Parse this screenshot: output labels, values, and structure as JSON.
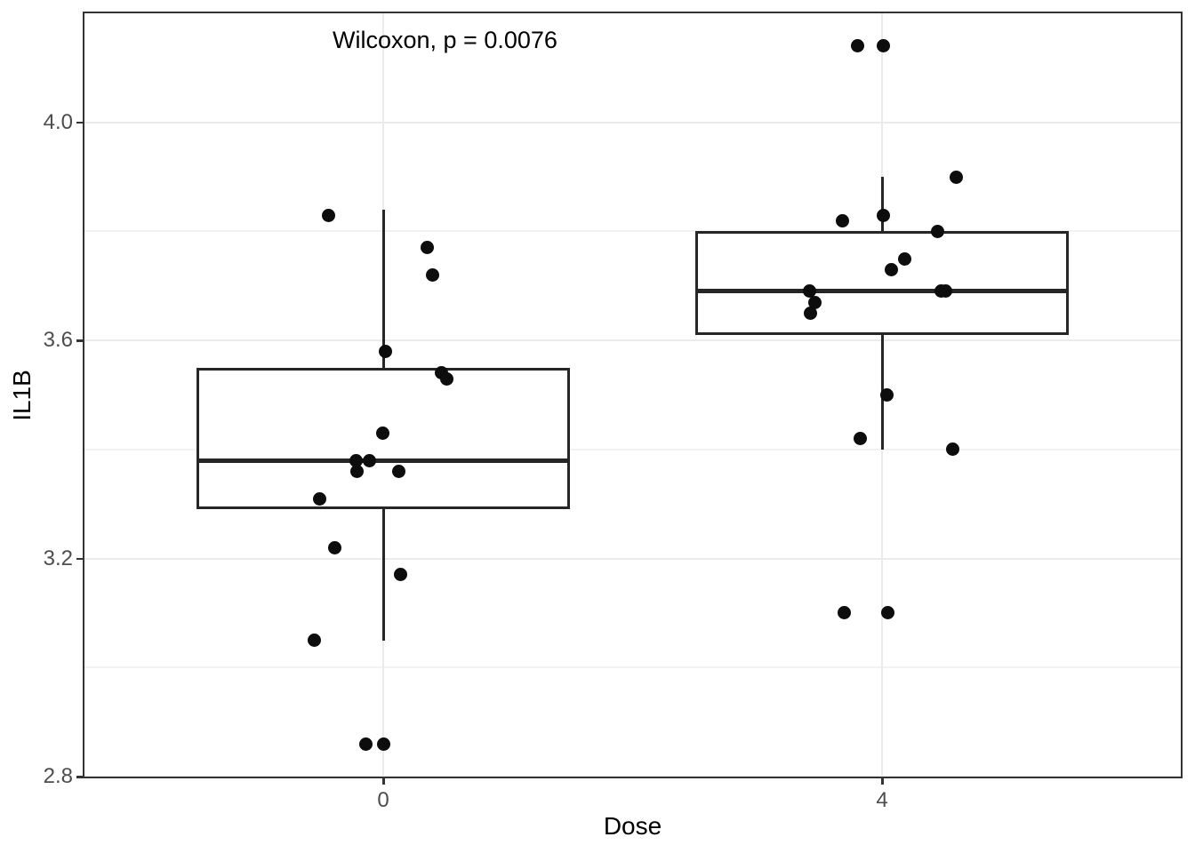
{
  "chart_data": {
    "type": "boxplot",
    "title": "Wilcoxon, p = 0.0076",
    "xlabel": "Dose",
    "ylabel": "IL1B",
    "categories": [
      "0",
      "4"
    ],
    "ylim": [
      2.8,
      4.2
    ],
    "grid": "on",
    "y_ticks": [
      {
        "label": "2.8",
        "value": 2.8
      },
      {
        "label": "3.2",
        "value": 3.2
      },
      {
        "label": "3.6",
        "value": 3.6
      },
      {
        "label": "4.0",
        "value": 4.0
      }
    ],
    "y_minor_ticks": [
      3.0,
      3.4,
      3.8
    ],
    "groups": [
      {
        "label": "0",
        "box": {
          "whisker_low": 3.05,
          "q1": 3.29,
          "median": 3.38,
          "q3": 3.55,
          "whisker_high": 3.84
        },
        "points": [
          {
            "dx": -62,
            "y": 3.83
          },
          {
            "dx": 49,
            "y": 3.77
          },
          {
            "dx": 55,
            "y": 3.72
          },
          {
            "dx": 2,
            "y": 3.58
          },
          {
            "dx": 65,
            "y": 3.54
          },
          {
            "dx": 71,
            "y": 3.53
          },
          {
            "dx": -1,
            "y": 3.43
          },
          {
            "dx": -16,
            "y": 3.38
          },
          {
            "dx": -31,
            "y": 3.38
          },
          {
            "dx": 17,
            "y": 3.36
          },
          {
            "dx": -30,
            "y": 3.36
          },
          {
            "dx": -72,
            "y": 3.31
          },
          {
            "dx": -55,
            "y": 3.22
          },
          {
            "dx": 19,
            "y": 3.17
          },
          {
            "dx": -78,
            "y": 3.05
          },
          {
            "dx": -20,
            "y": 2.86
          },
          {
            "dx": 0,
            "y": 2.86
          }
        ]
      },
      {
        "label": "4",
        "box": {
          "whisker_low": 3.4,
          "q1": 3.61,
          "median": 3.69,
          "q3": 3.8,
          "whisker_high": 3.9
        },
        "points": [
          {
            "dx": -28,
            "y": 4.14
          },
          {
            "dx": 1,
            "y": 4.14
          },
          {
            "dx": 83,
            "y": 3.9
          },
          {
            "dx": 1,
            "y": 3.83
          },
          {
            "dx": -45,
            "y": 3.82
          },
          {
            "dx": 62,
            "y": 3.8
          },
          {
            "dx": 25,
            "y": 3.75
          },
          {
            "dx": 10,
            "y": 3.73
          },
          {
            "dx": -82,
            "y": 3.69
          },
          {
            "dx": 66,
            "y": 3.69
          },
          {
            "dx": 71,
            "y": 3.69
          },
          {
            "dx": -76,
            "y": 3.67
          },
          {
            "dx": -81,
            "y": 3.65
          },
          {
            "dx": 5,
            "y": 3.5
          },
          {
            "dx": -25,
            "y": 3.42
          },
          {
            "dx": 79,
            "y": 3.4
          },
          {
            "dx": -43,
            "y": 3.1
          },
          {
            "dx": 6,
            "y": 3.1
          }
        ]
      }
    ],
    "colors": {
      "point": "#0d0d0d",
      "box_line": "#262626",
      "panel_border": "#333333",
      "grid_major": "#ebebeb",
      "grid_minor": "#f2f2f2",
      "tick_label": "#4d4d4d",
      "text": "#000000",
      "background": "#ffffff"
    },
    "legend": "none"
  }
}
